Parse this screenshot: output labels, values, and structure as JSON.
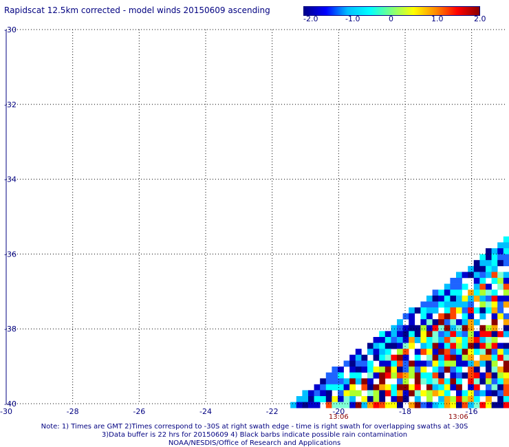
{
  "title": "Rapidscat 12.5km corrected - model winds 20150609 ascending",
  "colorbar": {
    "labels": [
      "-2.0",
      "-1.0",
      "0",
      "1.0",
      "2.0"
    ],
    "stops": [
      "#00008b",
      "#0000ff",
      "#00bfff",
      "#00ffff",
      "#7fff7f",
      "#ffff00",
      "#ff8c00",
      "#ff0000",
      "#8b0000"
    ],
    "range": [
      -2.0,
      2.0
    ]
  },
  "map": {
    "lon_range": [
      -30,
      -15
    ],
    "lat_range": [
      -40,
      -30
    ],
    "lon_ticks": [
      "-30",
      "-28",
      "-26",
      "-24",
      "-22",
      "-20",
      "-18",
      "-16"
    ],
    "lat_ticks": [
      "-30",
      "-32",
      "-34",
      "-36",
      "-38",
      "-40"
    ],
    "time_labels": [
      {
        "lon": -20,
        "text": "13:06"
      },
      {
        "lon": -16.4,
        "text": "13:06"
      }
    ],
    "grid": "dotted",
    "swath": "lower-right, bounded to the west by a diagonal edge running from about -22.2E,-40S to -15E,-35S"
  },
  "notes": {
    "line1": "Note: 1) Times are GMT 2)Times correspond to -30S at right swath edge - time is right swath for overlapping swaths at -30S",
    "line2": "3)Data buffer is 22 hrs for 20150609 4) Black barbs indicate possible rain contamination",
    "line3": "NOAA/NESDIS/Office of Research and Applications"
  }
}
